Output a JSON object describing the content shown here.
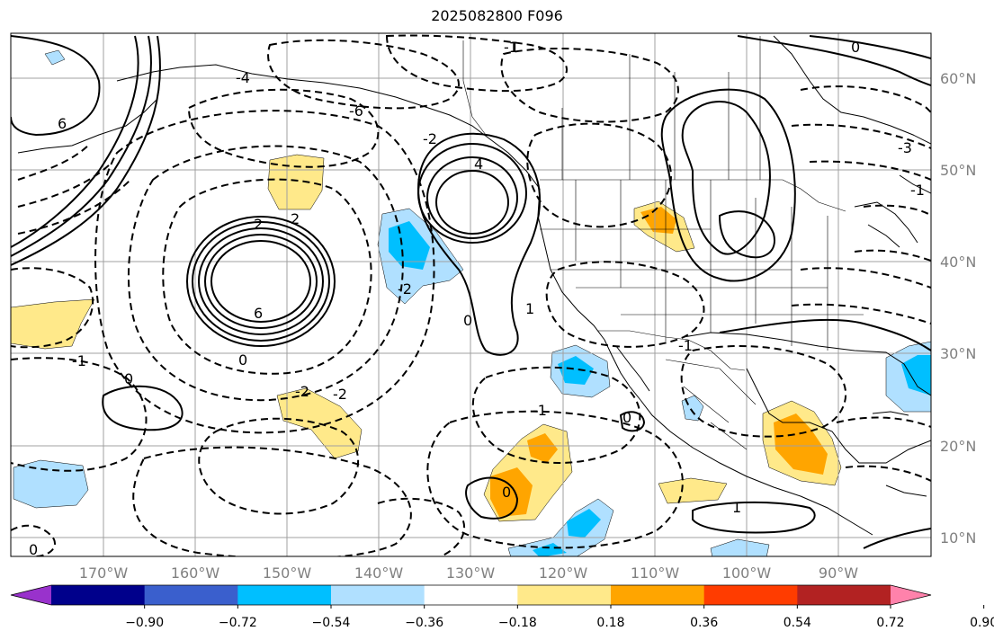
{
  "title": "2025082800 F096",
  "map": {
    "lat_labels": [
      "60°N",
      "50°N",
      "40°N",
      "30°N",
      "20°N",
      "10°N"
    ],
    "lon_labels": [
      "170°W",
      "160°W",
      "150°W",
      "140°W",
      "130°W",
      "120°W",
      "110°W",
      "100°W",
      "90°W"
    ],
    "contour_labels": [
      "6",
      "6",
      "4",
      "2",
      "0",
      "0",
      "-2",
      "-2",
      "-2",
      "-4",
      "-6",
      "2",
      "-1",
      "0",
      "-1",
      "1",
      "-1",
      "0",
      "-3",
      "-1",
      "0",
      "1",
      "0",
      "1",
      "-2",
      "0",
      "-1"
    ]
  },
  "colorbar": {
    "ticks": [
      "−0.90",
      "−0.72",
      "−0.54",
      "−0.36",
      "−0.18",
      "0.18",
      "0.36",
      "0.54",
      "0.72",
      "0.90"
    ],
    "colors": [
      "#9932cc",
      "#00008b",
      "#3a5fcd",
      "#00bfff",
      "#b0e0ff",
      "#ffffff",
      "#ffe98a",
      "#ffa500",
      "#ff3c00",
      "#b22222",
      "#ff82ab"
    ]
  }
}
